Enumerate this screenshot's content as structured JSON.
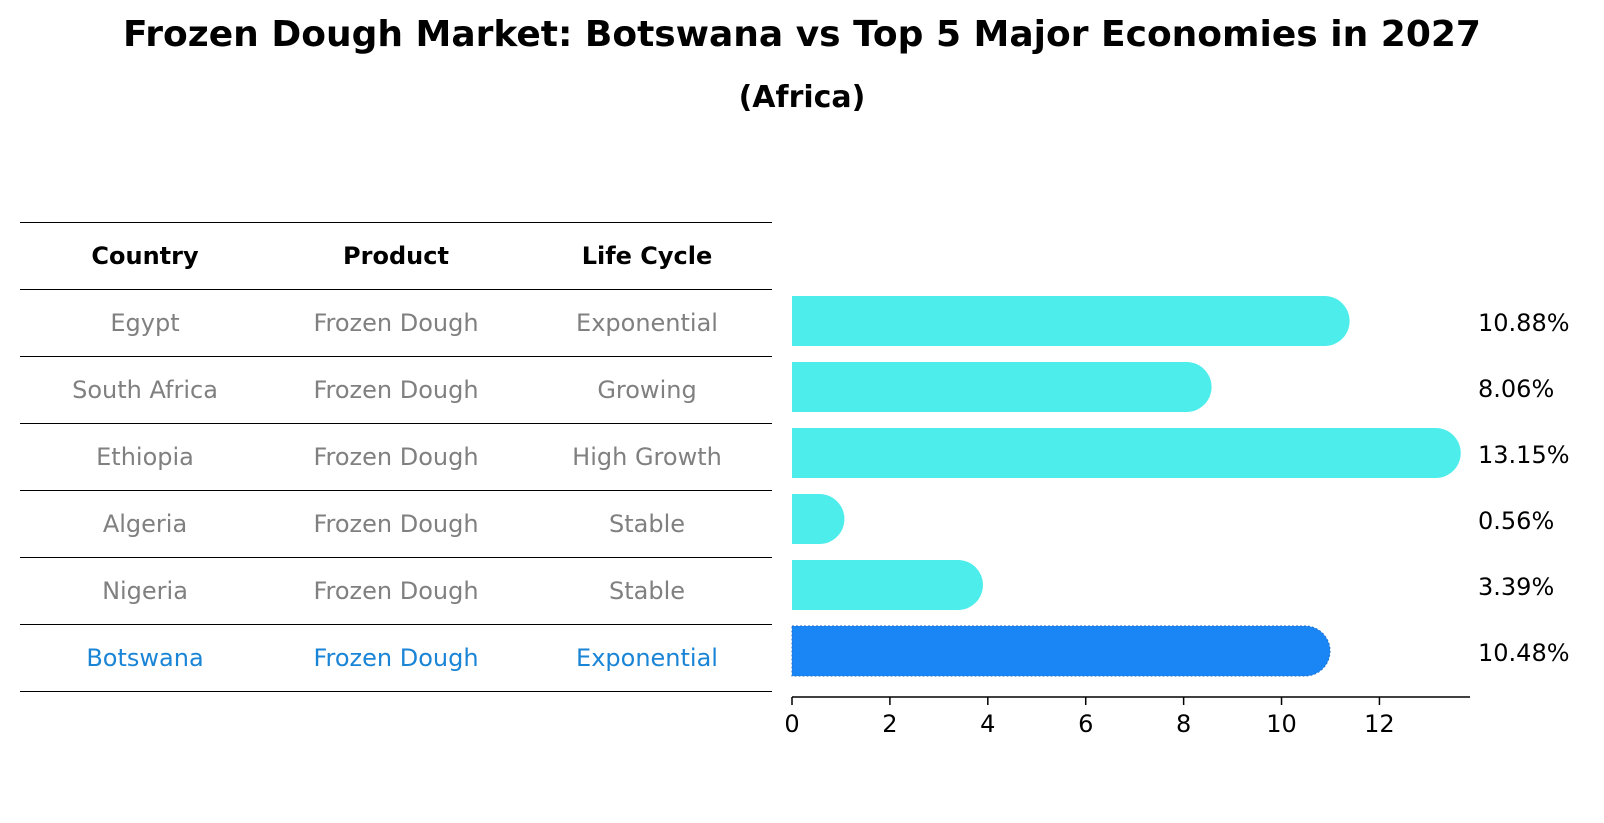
{
  "title": "Frozen Dough Market: Botswana vs Top 5 Major Economies in 2027",
  "subtitle": "(Africa)",
  "table": {
    "headers": [
      "Country",
      "Product",
      "Life Cycle"
    ],
    "rows": [
      [
        "Egypt",
        "Frozen Dough",
        "Exponential"
      ],
      [
        "South Africa",
        "Frozen Dough",
        "Growing"
      ],
      [
        "Ethiopia",
        "Frozen Dough",
        "High Growth"
      ],
      [
        "Algeria",
        "Frozen Dough",
        "Stable"
      ],
      [
        "Nigeria",
        "Frozen Dough",
        "Stable"
      ],
      [
        "Botswana",
        "Frozen Dough",
        "Exponential"
      ]
    ]
  },
  "colors": {
    "bar": "#4dedeb",
    "highlight": "#1a85f5",
    "highlight_text": "#1a85d6",
    "muted_text": "#808080"
  },
  "chart_data": {
    "type": "bar",
    "orientation": "horizontal",
    "categories": [
      "Egypt",
      "South Africa",
      "Ethiopia",
      "Algeria",
      "Nigeria",
      "Botswana"
    ],
    "values": [
      10.88,
      8.06,
      13.15,
      0.56,
      3.39,
      10.48
    ],
    "value_labels": [
      "10.88%",
      "8.06%",
      "13.15%",
      "0.56%",
      "3.39%",
      "10.48%"
    ],
    "highlight": "Botswana",
    "xlim": [
      0,
      13.85
    ],
    "xticks": [
      0,
      2,
      4,
      6,
      8,
      10,
      12
    ],
    "xlabel": "",
    "ylabel": "",
    "grid": false
  }
}
